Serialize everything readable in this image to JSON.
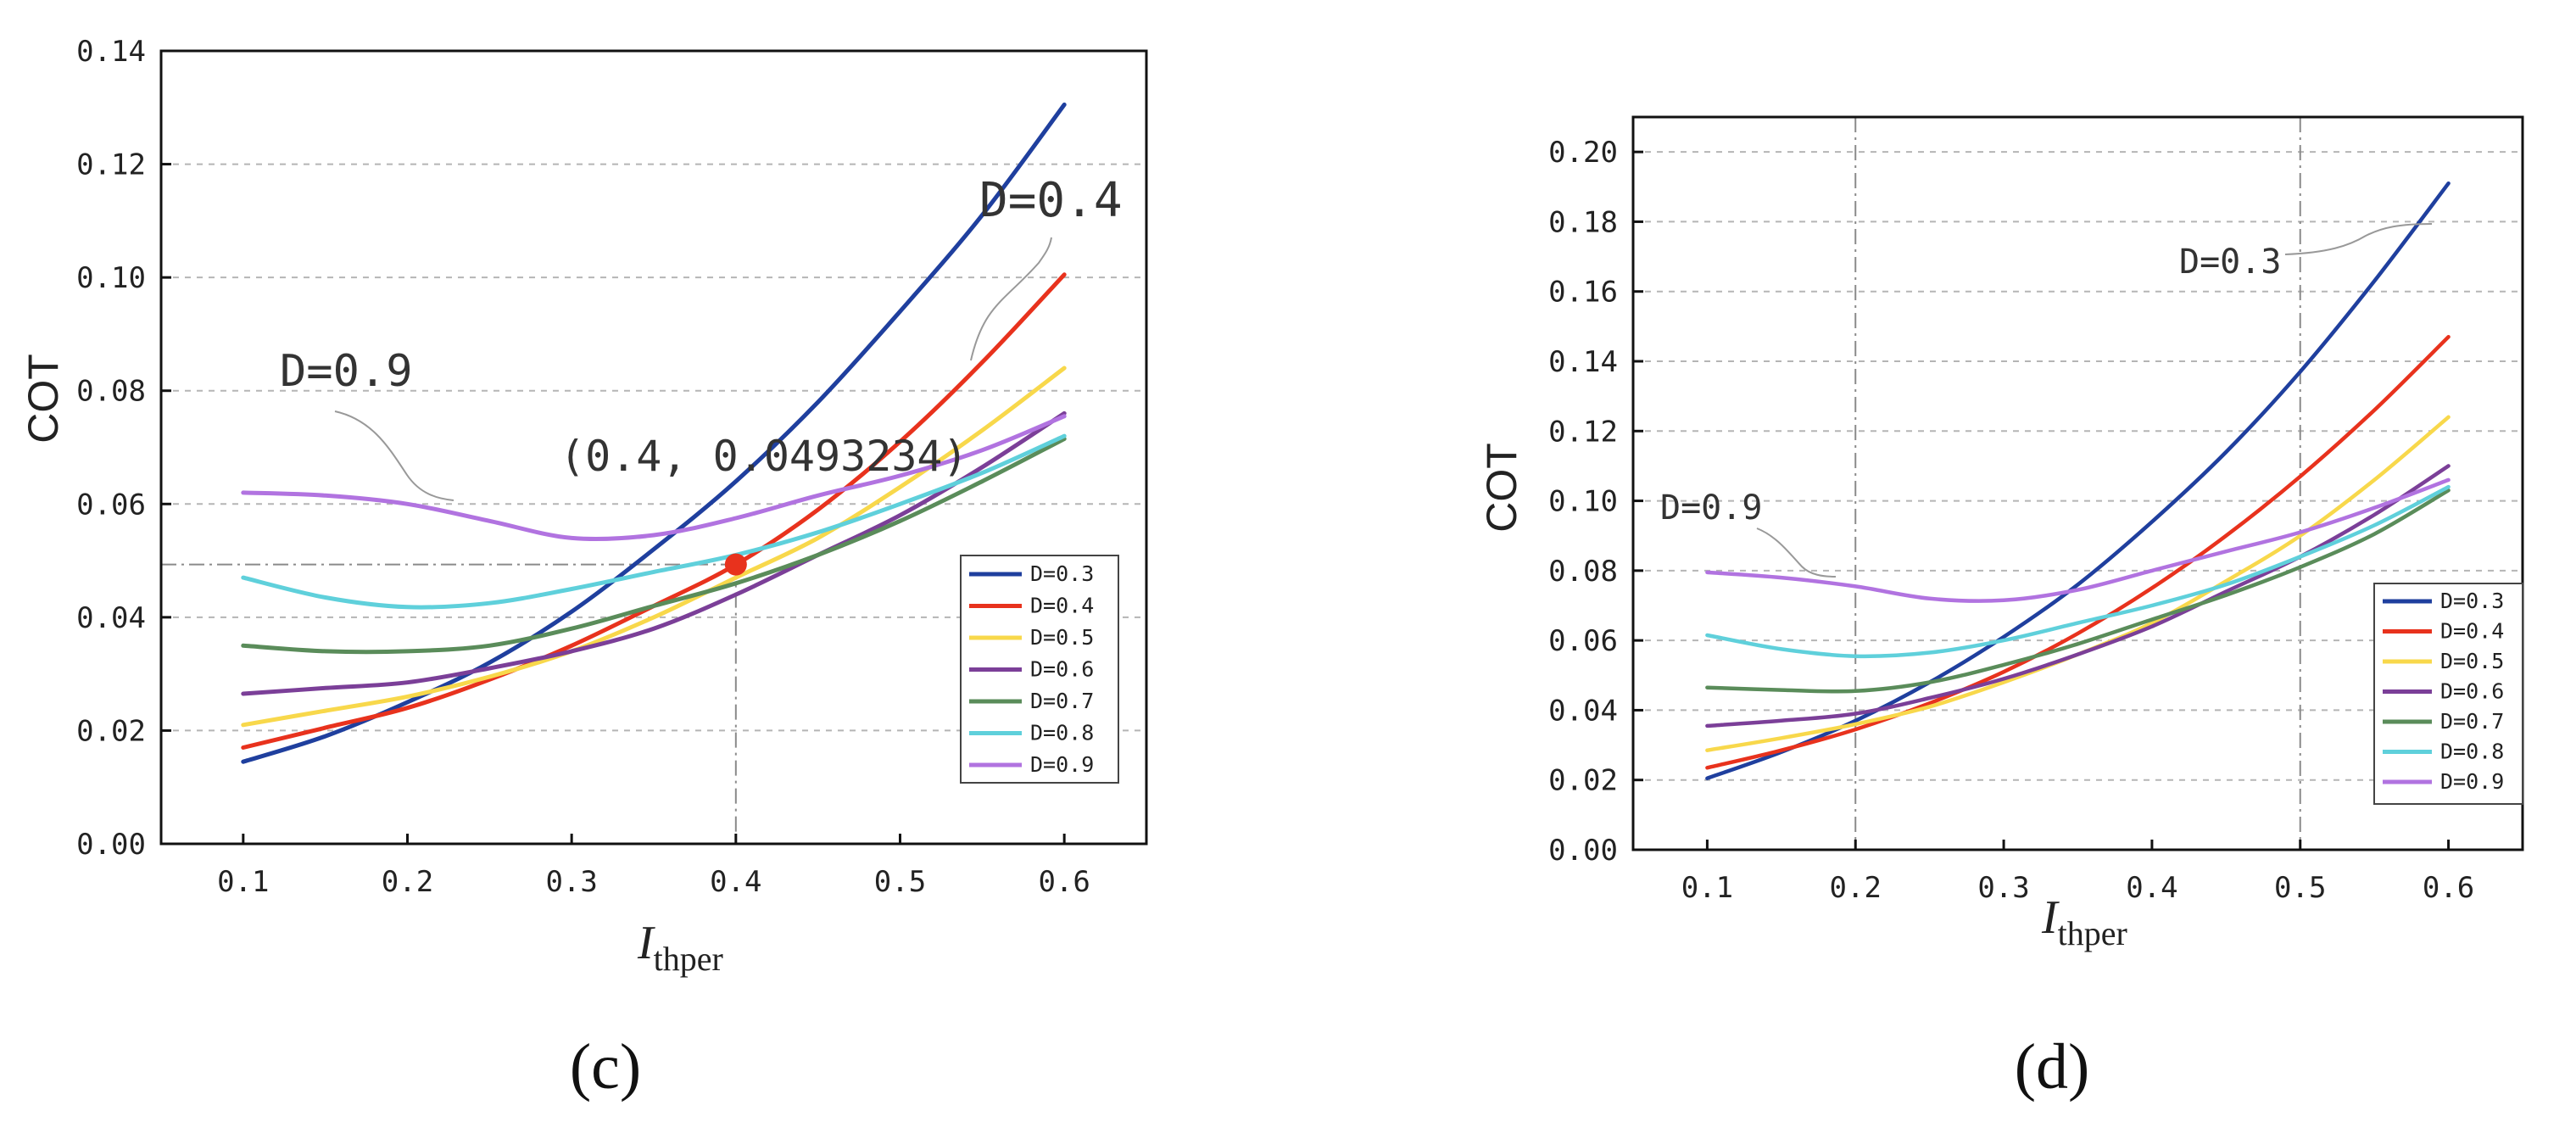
{
  "chart_data": [
    {
      "type": "line",
      "panel": "(c)",
      "xlabel": {
        "main": "I",
        "sub": "thper"
      },
      "ylabel": "COT",
      "xlim": [
        0.05,
        0.65
      ],
      "ylim": [
        0,
        0.14
      ],
      "xticks": [
        "0.1",
        "0.2",
        "0.3",
        "0.4",
        "0.5",
        "0.6"
      ],
      "yticks": [
        "0.00",
        "0.02",
        "0.04",
        "0.06",
        "0.08",
        "0.10",
        "0.12",
        "0.14"
      ],
      "grid": "horizontal-dashed",
      "legend_position": "lower-right",
      "x": [
        0.1,
        0.15,
        0.2,
        0.25,
        0.3,
        0.35,
        0.4,
        0.45,
        0.5,
        0.55,
        0.6
      ],
      "series": [
        {
          "name": "D=0.3",
          "color": "#1f3f9e",
          "values": [
            0.0145,
            0.019,
            0.025,
            0.032,
            0.041,
            0.052,
            0.064,
            0.078,
            0.094,
            0.111,
            0.1305
          ]
        },
        {
          "name": "D=0.4",
          "color": "#e8321d",
          "values": [
            0.017,
            0.0205,
            0.024,
            0.029,
            0.035,
            0.042,
            0.0493,
            0.059,
            0.071,
            0.085,
            0.1005
          ]
        },
        {
          "name": "D=0.5",
          "color": "#f8d84b",
          "values": [
            0.021,
            0.0235,
            0.026,
            0.0295,
            0.034,
            0.04,
            0.047,
            0.054,
            0.063,
            0.073,
            0.084
          ]
        },
        {
          "name": "D=0.6",
          "color": "#7b3f98",
          "values": [
            0.0265,
            0.0275,
            0.0285,
            0.031,
            0.034,
            0.038,
            0.044,
            0.051,
            0.058,
            0.0665,
            0.076
          ]
        },
        {
          "name": "D=0.7",
          "color": "#5a8c5a",
          "values": [
            0.035,
            0.034,
            0.034,
            0.035,
            0.038,
            0.042,
            0.046,
            0.051,
            0.057,
            0.064,
            0.0715
          ]
        },
        {
          "name": "D=0.8",
          "color": "#5fd0db",
          "values": [
            0.047,
            0.0435,
            0.0418,
            0.0425,
            0.045,
            0.048,
            0.051,
            0.055,
            0.06,
            0.0655,
            0.072
          ]
        },
        {
          "name": "D=0.9",
          "color": "#b173e0",
          "values": [
            0.062,
            0.0615,
            0.06,
            0.057,
            0.054,
            0.0545,
            0.0575,
            0.0615,
            0.065,
            0.0695,
            0.0755
          ]
        }
      ],
      "marker": {
        "x": 0.4,
        "y": 0.0493234,
        "label": "(0.4, 0.0493234)",
        "color": "#e8321d"
      },
      "annotations": [
        {
          "text": "D=0.4",
          "near": "upper-right"
        },
        {
          "text": "D=0.9",
          "near": "upper-left"
        }
      ]
    },
    {
      "type": "line",
      "panel": "(d)",
      "xlabel": {
        "main": "I",
        "sub": "thper"
      },
      "ylabel": "COT",
      "xlim": [
        0.05,
        0.65
      ],
      "ylim": [
        0,
        0.21
      ],
      "xticks": [
        "0.1",
        "0.2",
        "0.3",
        "0.4",
        "0.5",
        "0.6"
      ],
      "yticks": [
        "0.00",
        "0.02",
        "0.04",
        "0.06",
        "0.08",
        "0.10",
        "0.12",
        "0.14",
        "0.16",
        "0.18",
        "0.20"
      ],
      "grid": "horizontal-dashed",
      "legend_position": "lower-right",
      "reference_lines_x": [
        0.2,
        0.5
      ],
      "x": [
        0.1,
        0.15,
        0.2,
        0.25,
        0.3,
        0.35,
        0.4,
        0.45,
        0.5,
        0.55,
        0.6
      ],
      "series": [
        {
          "name": "D=0.3",
          "color": "#1f3f9e",
          "values": [
            0.0205,
            0.028,
            0.037,
            0.048,
            0.061,
            0.076,
            0.094,
            0.114,
            0.137,
            0.163,
            0.191
          ]
        },
        {
          "name": "D=0.4",
          "color": "#e8321d",
          "values": [
            0.0235,
            0.0285,
            0.0345,
            0.042,
            0.051,
            0.062,
            0.075,
            0.09,
            0.107,
            0.126,
            0.147
          ]
        },
        {
          "name": "D=0.5",
          "color": "#f8d84b",
          "values": [
            0.0285,
            0.032,
            0.036,
            0.041,
            0.048,
            0.056,
            0.065,
            0.077,
            0.09,
            0.106,
            0.124
          ]
        },
        {
          "name": "D=0.6",
          "color": "#7b3f98",
          "values": [
            0.0355,
            0.037,
            0.039,
            0.0435,
            0.049,
            0.056,
            0.064,
            0.074,
            0.084,
            0.096,
            0.11
          ]
        },
        {
          "name": "D=0.7",
          "color": "#5a8c5a",
          "values": [
            0.0465,
            0.0458,
            0.0455,
            0.048,
            0.053,
            0.059,
            0.066,
            0.073,
            0.081,
            0.0905,
            0.103
          ]
        },
        {
          "name": "D=0.8",
          "color": "#5fd0db",
          "values": [
            0.0615,
            0.0575,
            0.0555,
            0.0565,
            0.06,
            0.065,
            0.07,
            0.076,
            0.084,
            0.093,
            0.104
          ]
        },
        {
          "name": "D=0.9",
          "color": "#b173e0",
          "values": [
            0.0795,
            0.078,
            0.0755,
            0.072,
            0.0715,
            0.0745,
            0.08,
            0.0855,
            0.091,
            0.098,
            0.106
          ]
        }
      ],
      "annotations": [
        {
          "text": "D=0.3",
          "near": "upper-right"
        },
        {
          "text": "D=0.9",
          "near": "left"
        }
      ]
    }
  ]
}
